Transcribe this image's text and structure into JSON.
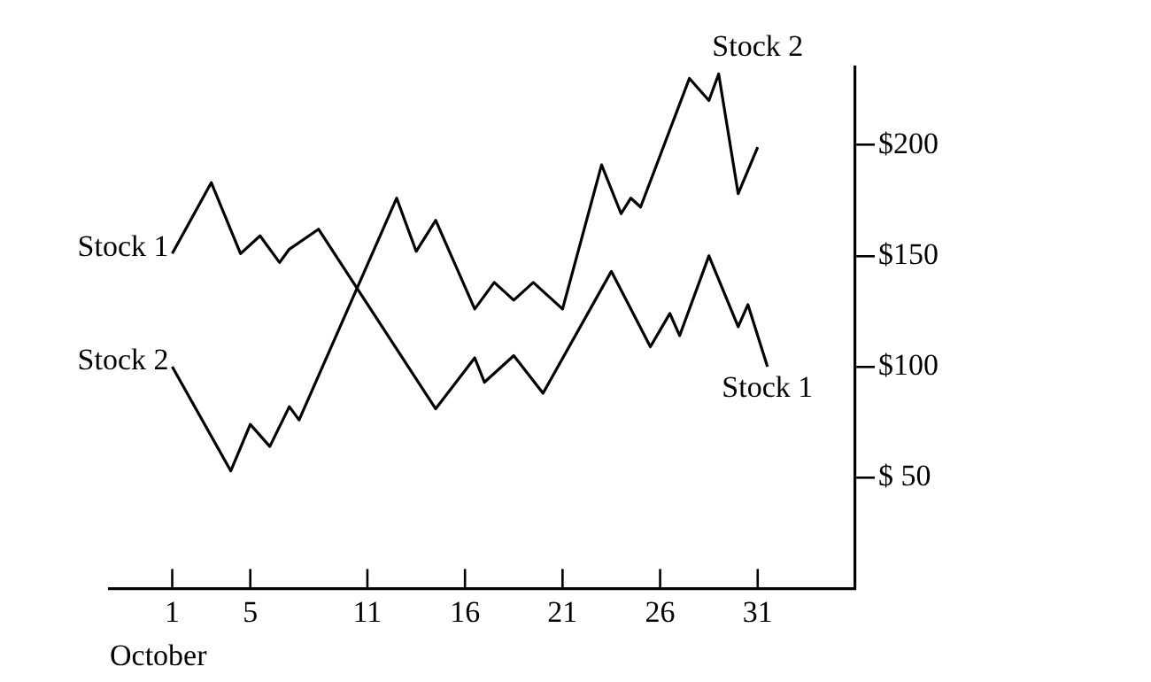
{
  "chart_data": {
    "type": "line",
    "xlabel": "October",
    "xlim": [
      -2.2,
      36
    ],
    "xticks": [
      1,
      5,
      11,
      16,
      21,
      26,
      31
    ],
    "ylim": [
      0,
      235
    ],
    "yticks": [
      {
        "value": 50,
        "label": "$ 50"
      },
      {
        "value": 100,
        "label": "$100"
      },
      {
        "value": 150,
        "label": "$150"
      },
      {
        "value": 200,
        "label": "$200"
      }
    ],
    "grid": false,
    "legend": false,
    "marker": "none",
    "line_style": "solid",
    "series": [
      {
        "name": "Stock 1",
        "color": "#000000",
        "x": [
          1,
          3,
          4.5,
          5.5,
          6.5,
          7,
          8.5,
          14.5,
          16.5,
          17,
          18.5,
          20,
          23.5,
          25.5,
          26.5,
          27,
          28.5,
          30,
          30.5,
          31.5
        ],
        "values": [
          151,
          183,
          151,
          159,
          147,
          153,
          162,
          81,
          104,
          93,
          105,
          88,
          143,
          109,
          124,
          114,
          150,
          118,
          128,
          100
        ]
      },
      {
        "name": "Stock 2",
        "color": "#000000",
        "x": [
          1,
          4,
          5,
          6,
          7,
          7.5,
          12.5,
          13.5,
          14.5,
          16.5,
          17.5,
          18.5,
          19.5,
          21,
          23,
          24,
          24.5,
          25,
          27.5,
          28.5,
          29,
          30,
          31
        ],
        "values": [
          100,
          53,
          74,
          64,
          82,
          76,
          176,
          152,
          166,
          126,
          138,
          130,
          138,
          126,
          191,
          169,
          176,
          172,
          230,
          220,
          232,
          178,
          199
        ]
      }
    ]
  }
}
